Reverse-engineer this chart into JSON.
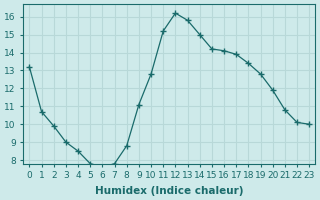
{
  "x": [
    0,
    1,
    2,
    3,
    4,
    5,
    6,
    7,
    8,
    9,
    10,
    11,
    12,
    13,
    14,
    15,
    16,
    17,
    18,
    19,
    20,
    21,
    22,
    23
  ],
  "y": [
    13.2,
    10.7,
    9.9,
    9.0,
    8.5,
    7.8,
    7.6,
    7.8,
    8.8,
    11.1,
    12.8,
    15.2,
    16.2,
    15.8,
    15.0,
    14.2,
    14.1,
    13.9,
    13.4,
    12.8,
    11.9,
    10.8,
    10.1,
    10.0
  ],
  "line_color": "#1a6b6b",
  "marker": "+",
  "marker_size": 4,
  "bg_color": "#ceeaea",
  "grid_color": "#b8d8d8",
  "xlabel": "Humidex (Indice chaleur)",
  "xlim": [
    -0.5,
    23.5
  ],
  "ylim": [
    7.8,
    16.7
  ],
  "yticks": [
    8,
    9,
    10,
    11,
    12,
    13,
    14,
    15,
    16
  ],
  "xticks": [
    0,
    1,
    2,
    3,
    4,
    5,
    6,
    7,
    8,
    9,
    10,
    11,
    12,
    13,
    14,
    15,
    16,
    17,
    18,
    19,
    20,
    21,
    22,
    23
  ],
  "tick_label_color": "#1a6b6b",
  "label_fontsize": 7.5,
  "tick_fontsize": 6.5
}
